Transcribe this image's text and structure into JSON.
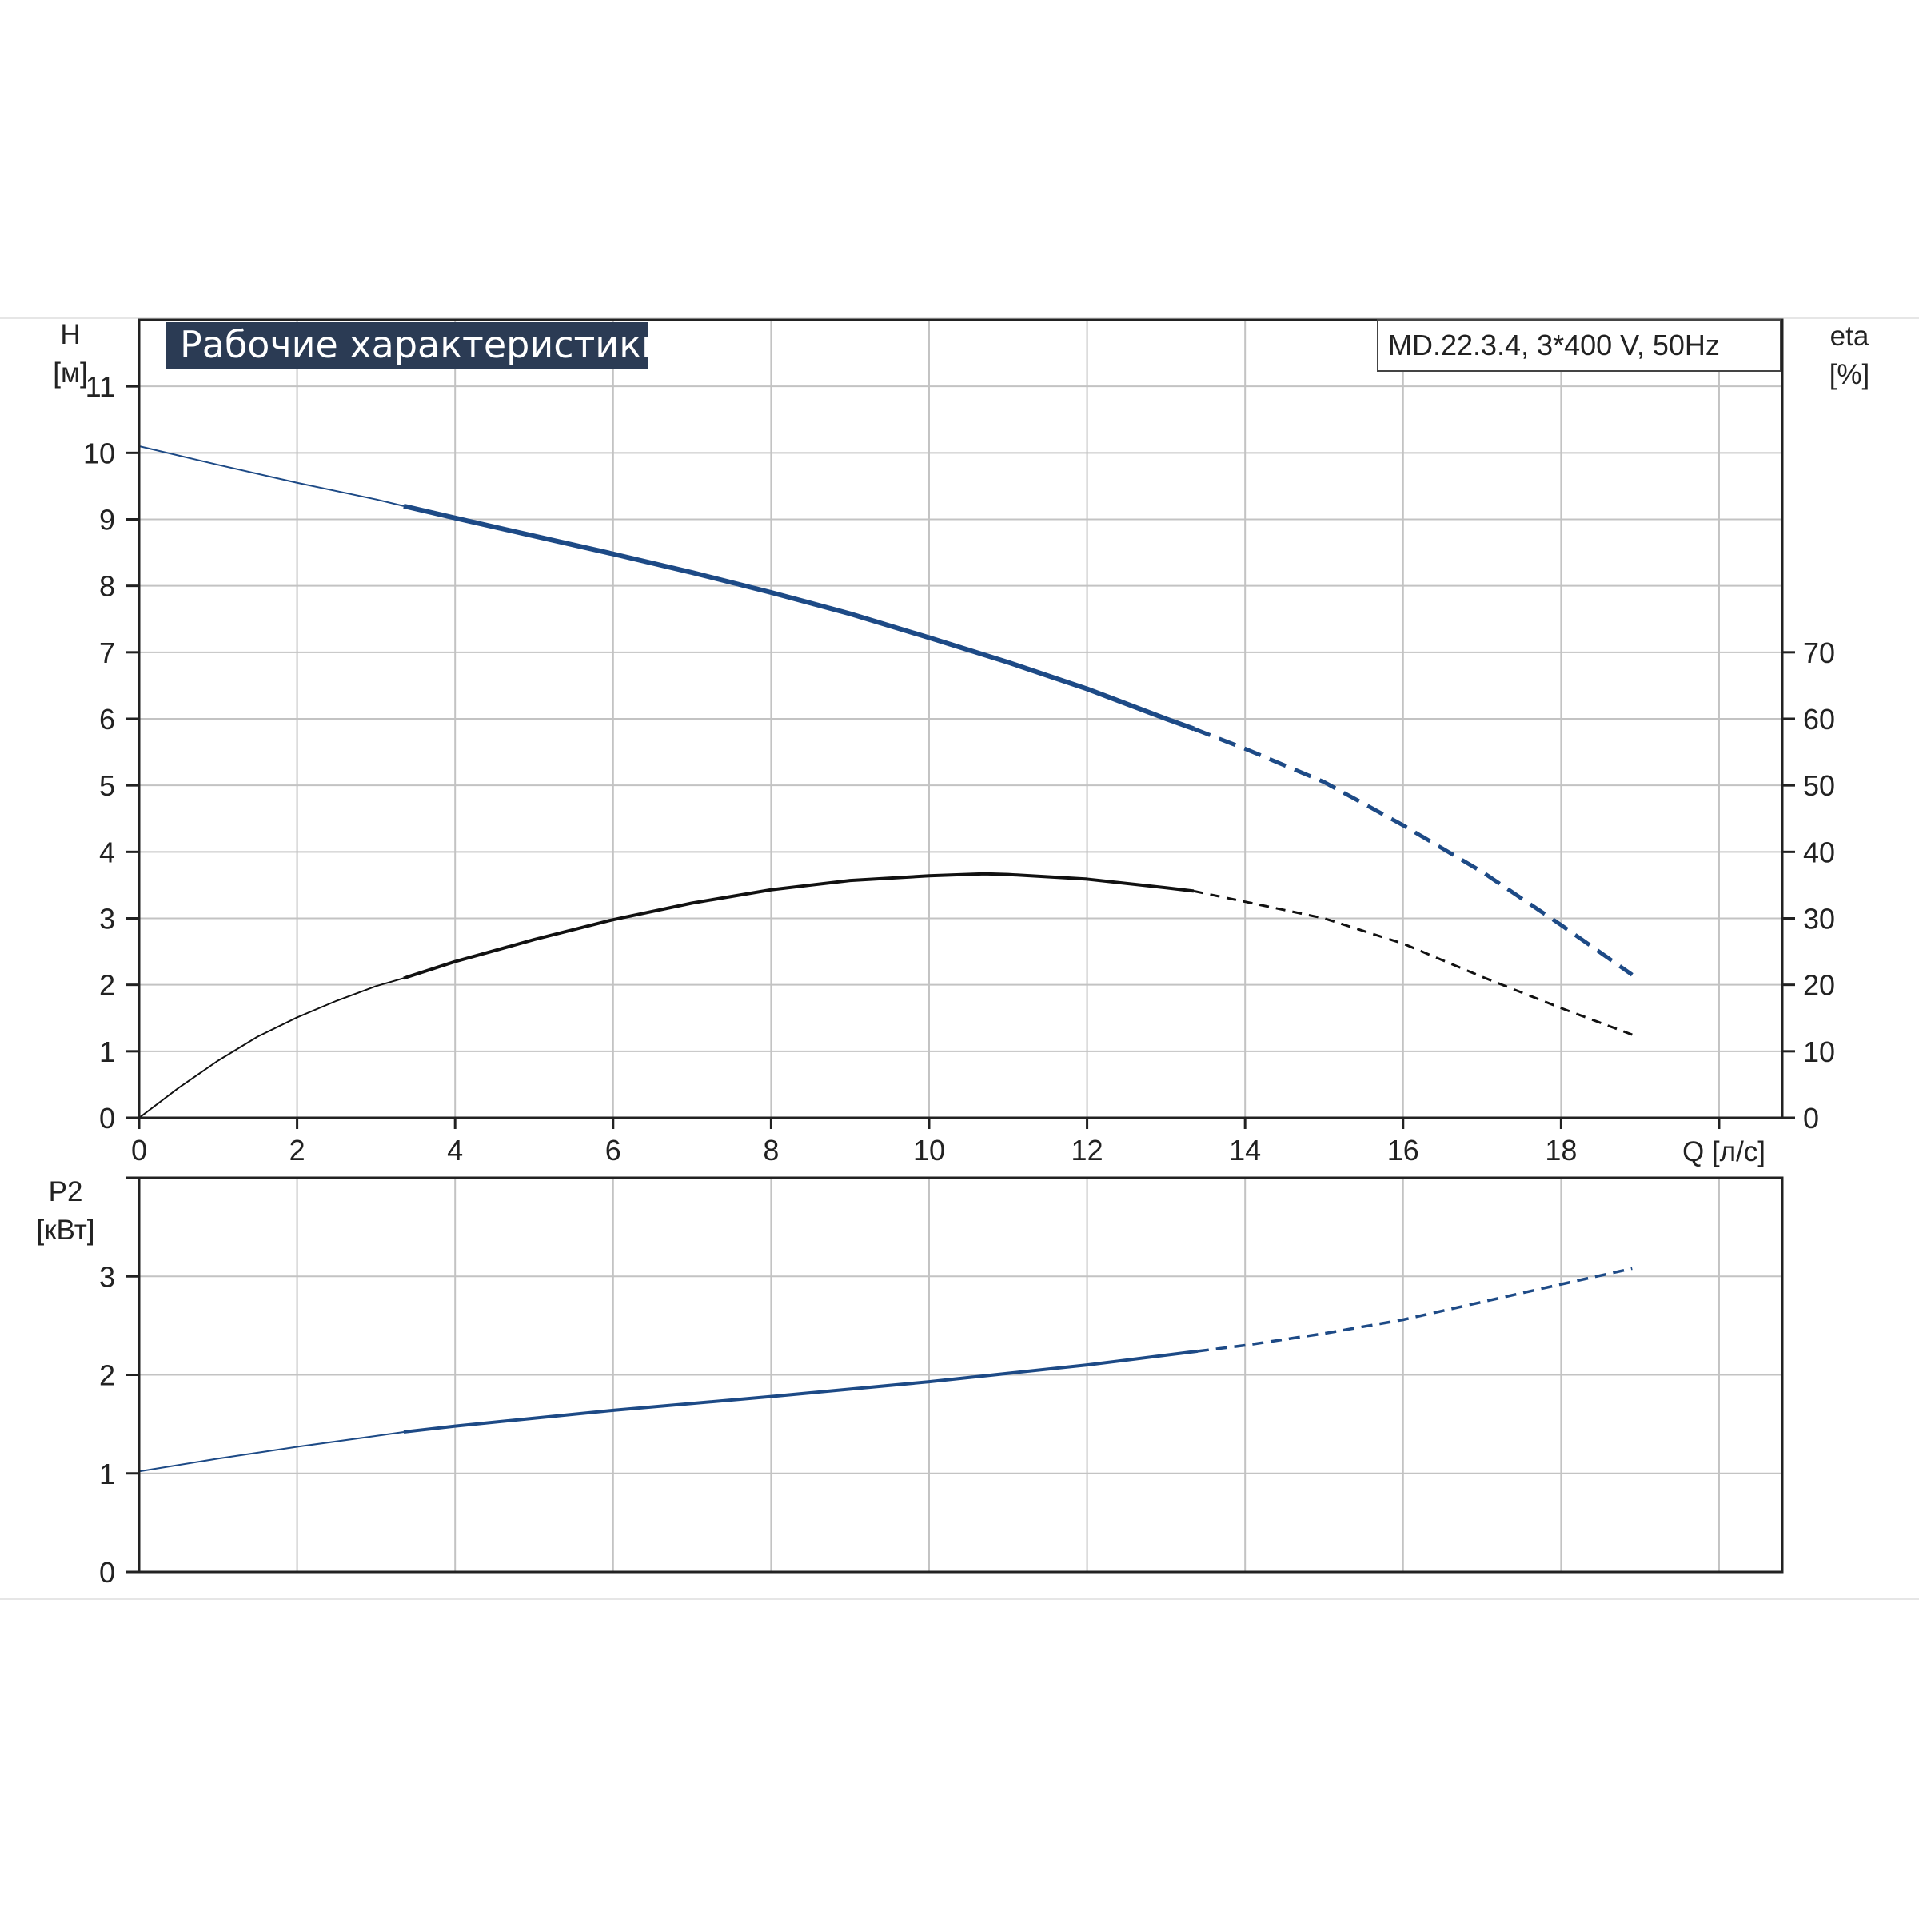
{
  "colors": {
    "curve_blue": "#1d4a86",
    "curve_black": "#111111",
    "grid": "#c3c3c3",
    "frame": "#222222",
    "title_bg": "#2b3b54",
    "title_text": "#ffffff"
  },
  "labels": {
    "title": "Рабочие характеристики",
    "model": "MD.22.3.4, 3*400 V, 50Hz",
    "h_axis_symbol": "H",
    "h_axis_unit": "[м]",
    "eta_axis_symbol": "eta",
    "eta_axis_unit": "[%]",
    "q_axis_label": "Q [л/с]",
    "p2_axis_symbol": "P2",
    "p2_axis_unit": "[кВт]"
  },
  "chart_data": [
    {
      "type": "line",
      "title": "Рабочие характеристики",
      "annotation": "MD.22.3.4, 3*400 V, 50Hz",
      "xlabel": "Q [л/с]",
      "ylabel": "H [м]",
      "ylabel_right": "eta [%]",
      "xlim": [
        0,
        20.8
      ],
      "ylim": [
        0,
        12
      ],
      "ylim_right": [
        0,
        120
      ],
      "x_ticks": [
        0,
        2,
        4,
        6,
        8,
        10,
        12,
        14,
        16,
        18
      ],
      "y_ticks": [
        0,
        1,
        2,
        3,
        4,
        5,
        6,
        7,
        8,
        9,
        10,
        11
      ],
      "y_ticks_right": [
        0,
        10,
        20,
        30,
        40,
        50,
        60,
        70
      ],
      "grid": true,
      "series": [
        {
          "name": "H",
          "axis": "left",
          "color": "#1d4a86",
          "segments": [
            {
              "style": "thin",
              "x": [
                0,
                1,
                2,
                3,
                3.35
              ],
              "y": [
                10.1,
                9.82,
                9.55,
                9.3,
                9.2
              ]
            },
            {
              "style": "solid",
              "x": [
                3.35,
                4,
                5,
                6,
                7,
                8,
                9,
                10,
                11,
                12,
                13,
                13.35
              ],
              "y": [
                9.2,
                9.02,
                8.75,
                8.48,
                8.2,
                7.9,
                7.58,
                7.22,
                6.85,
                6.45,
                6.0,
                5.85
              ]
            },
            {
              "style": "dashed",
              "x": [
                13.35,
                14,
                15,
                16,
                17,
                18,
                18.9
              ],
              "y": [
                5.85,
                5.55,
                5.05,
                4.4,
                3.7,
                2.9,
                2.15
              ]
            }
          ]
        },
        {
          "name": "eta",
          "axis": "right",
          "color": "#111111",
          "segments": [
            {
              "style": "thin",
              "x": [
                0,
                0.5,
                1,
                1.5,
                2,
                2.5,
                3,
                3.35
              ],
              "y": [
                0,
                4.5,
                8.6,
                12.2,
                15.1,
                17.6,
                19.8,
                21.0
              ]
            },
            {
              "style": "solid",
              "x": [
                3.35,
                4,
                5,
                6,
                7,
                8,
                9,
                10,
                10.7,
                11,
                12,
                13,
                13.35
              ],
              "y": [
                21.0,
                23.5,
                26.8,
                29.8,
                32.3,
                34.3,
                35.7,
                36.4,
                36.7,
                36.6,
                35.9,
                34.6,
                34.1
              ]
            },
            {
              "style": "dashed",
              "x": [
                13.35,
                14,
                15,
                16,
                17,
                18,
                18.9
              ],
              "y": [
                34.1,
                32.5,
                30.0,
                26.2,
                21.2,
                16.5,
                12.5
              ]
            }
          ]
        }
      ]
    },
    {
      "type": "line",
      "xlabel": "Q [л/с]",
      "ylabel": "P2 [кВт]",
      "xlim": [
        0,
        20.8
      ],
      "ylim": [
        0,
        4
      ],
      "y_ticks": [
        0,
        1,
        2,
        3
      ],
      "grid": true,
      "series": [
        {
          "name": "P2",
          "axis": "left",
          "color": "#1d4a86",
          "segments": [
            {
              "style": "thin",
              "x": [
                0,
                1,
                2,
                3,
                3.35
              ],
              "y": [
                1.02,
                1.15,
                1.27,
                1.38,
                1.42
              ]
            },
            {
              "style": "solid",
              "x": [
                3.35,
                4,
                6,
                8,
                10,
                12,
                13.4
              ],
              "y": [
                1.42,
                1.48,
                1.64,
                1.78,
                1.93,
                2.1,
                2.24
              ]
            },
            {
              "style": "dashed",
              "x": [
                13.4,
                14,
                15,
                16,
                17,
                18,
                18.9
              ],
              "y": [
                2.24,
                2.3,
                2.42,
                2.56,
                2.74,
                2.92,
                3.08
              ]
            }
          ]
        }
      ]
    }
  ]
}
